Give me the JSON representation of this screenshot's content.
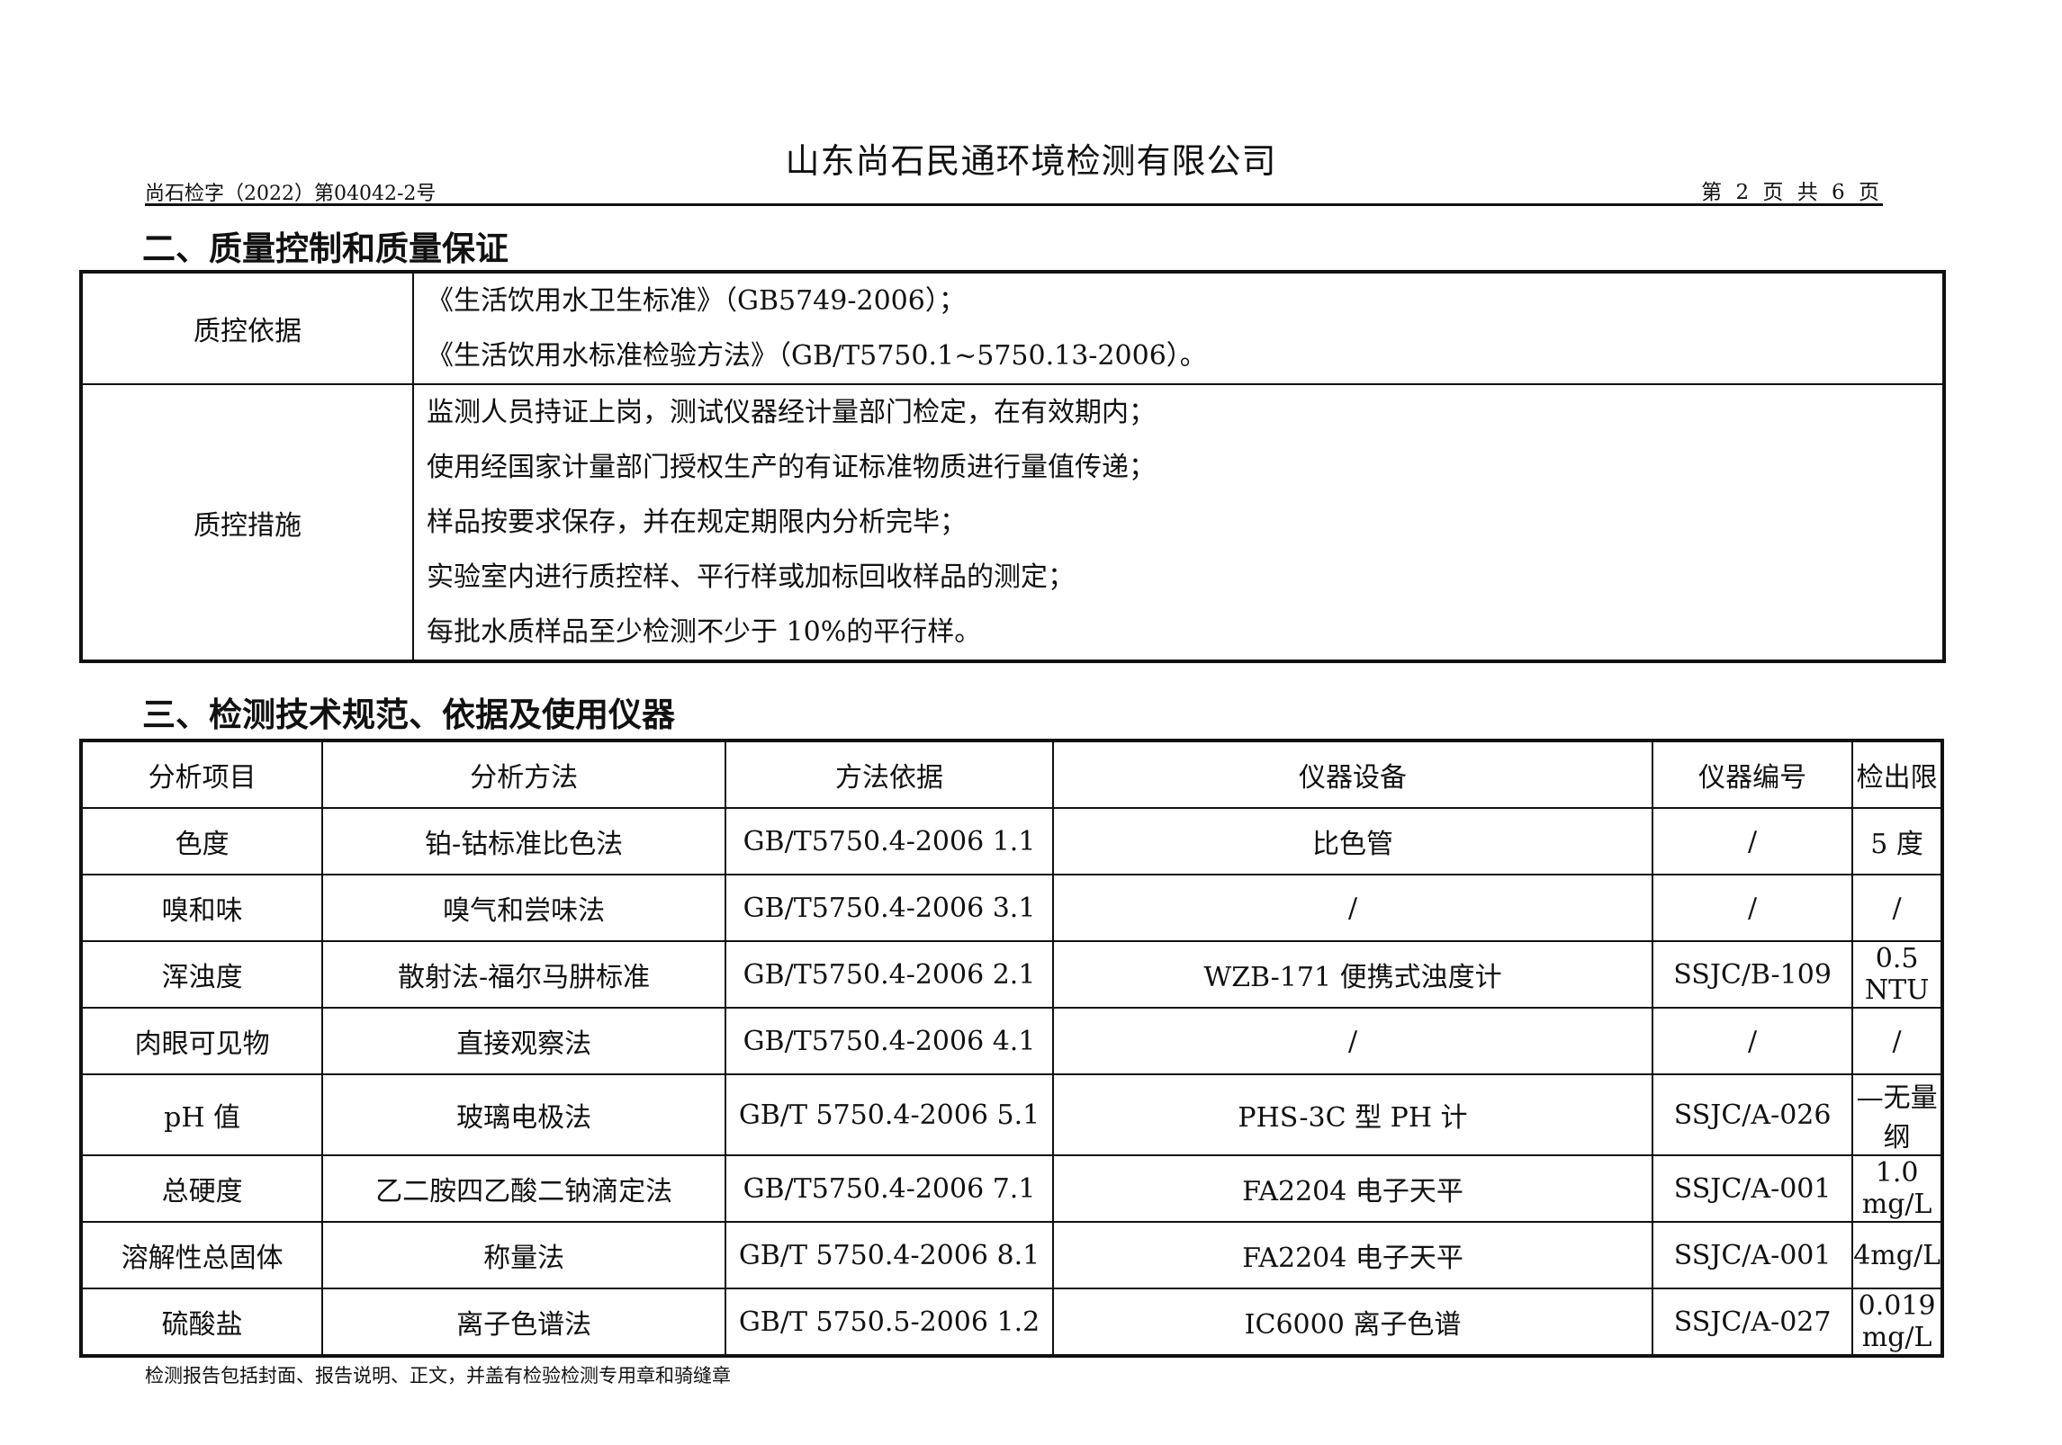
{
  "header": {
    "company": "山东尚石民通环境检测有限公司",
    "doc_number": "尚石检字（2022）第04042-2号",
    "page_info": "第 2 页 共 6 页"
  },
  "section2": {
    "title": "二、质量控制和质量保证",
    "rows": [
      {
        "label": "质控依据",
        "lines": [
          "《生活饮用水卫生标准》（GB5749-2006）；",
          "《生活饮用水标准检验方法》（GB/T5750.1~5750.13-2006）。"
        ]
      },
      {
        "label": "质控措施",
        "lines": [
          "监测人员持证上岗，测试仪器经计量部门检定，在有效期内；",
          "使用经国家计量部门授权生产的有证标准物质进行量值传递；",
          "样品按要求保存，并在规定期限内分析完毕；",
          "实验室内进行质控样、平行样或加标回收样品的测定；",
          "每批水质样品至少检测不少于 10%的平行样。"
        ]
      }
    ]
  },
  "section3": {
    "title": "三、检测技术规范、依据及使用仪器",
    "columns": [
      "分析项目",
      "分析方法",
      "方法依据",
      "仪器设备",
      "仪器编号",
      "检出限"
    ],
    "rows": [
      [
        "色度",
        "铂-钴标准比色法",
        "GB/T5750.4-2006 1.1",
        "比色管",
        "/",
        "5 度"
      ],
      [
        "嗅和味",
        "嗅气和尝味法",
        "GB/T5750.4-2006 3.1",
        "/",
        "/",
        "/"
      ],
      [
        "浑浊度",
        "散射法-福尔马肼标准",
        "GB/T5750.4-2006 2.1",
        "WZB-171 便携式浊度计",
        "SSJC/B-109",
        "0.5 NTU"
      ],
      [
        "肉眼可见物",
        "直接观察法",
        "GB/T5750.4-2006 4.1",
        "/",
        "/",
        "/"
      ],
      [
        "pH 值",
        "玻璃电极法",
        "GB/T 5750.4-2006 5.1",
        "PHS-3C 型 PH 计",
        "SSJC/A-026",
        "—无量纲"
      ],
      [
        "总硬度",
        "乙二胺四乙酸二钠滴定法",
        "GB/T5750.4-2006 7.1",
        "FA2204 电子天平",
        "SSJC/A-001",
        "1.0 mg/L"
      ],
      [
        "溶解性总固体",
        "称量法",
        "GB/T 5750.4-2006 8.1",
        "FA2204 电子天平",
        "SSJC/A-001",
        "4mg/L"
      ],
      [
        "硫酸盐",
        "离子色谱法",
        "GB/T 5750.5-2006 1.2",
        "IC6000 离子色谱",
        "SSJC/A-027",
        "0.019 mg/L"
      ]
    ]
  },
  "footer": {
    "note": "检测报告包括封面、报告说明、正文，并盖有检验检测专用章和骑缝章"
  }
}
